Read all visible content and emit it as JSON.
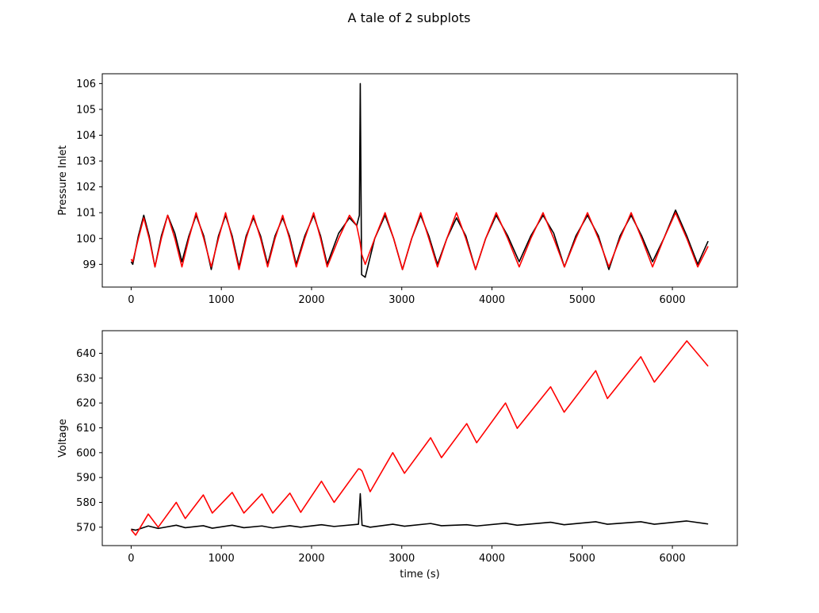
{
  "figure_title": "A tale of 2 subplots",
  "chart_data": [
    {
      "type": "line",
      "ylabel": "Pressure Inlet",
      "x": [
        0,
        18,
        80,
        140,
        200,
        264,
        335,
        405,
        485,
        563,
        640,
        720,
        805,
        888,
        968,
        1047,
        1120,
        1196,
        1275,
        1355,
        1435,
        1513,
        1595,
        1680,
        1755,
        1830,
        1925,
        2023,
        2100,
        2173,
        2300,
        2420,
        2500,
        2530,
        2540,
        2555,
        2595,
        2700,
        2815,
        2910,
        3008,
        3110,
        3210,
        3300,
        3396,
        3500,
        3607,
        3710,
        3818,
        3930,
        4047,
        4175,
        4302,
        4430,
        4566,
        4685,
        4803,
        4930,
        5059,
        5180,
        5296,
        5420,
        5543,
        5660,
        5780,
        5905,
        6035,
        6160,
        6281,
        6396
      ],
      "series": [
        {
          "color": "#000000",
          "values": [
            99.1,
            99.0,
            100.1,
            100.9,
            100.1,
            98.9,
            100.1,
            100.9,
            100.2,
            99.1,
            100.1,
            100.9,
            100.1,
            98.8,
            100.1,
            100.9,
            100.1,
            98.9,
            100.1,
            100.8,
            100.1,
            99.0,
            100.1,
            100.8,
            100.1,
            99.0,
            100.1,
            100.9,
            100.1,
            99.0,
            100.2,
            100.8,
            100.5,
            100.9,
            106.0,
            98.6,
            98.5,
            100.0,
            100.9,
            100.0,
            98.8,
            100.0,
            100.9,
            100.1,
            99.0,
            100.0,
            100.8,
            100.1,
            98.8,
            100.0,
            100.9,
            100.1,
            99.1,
            100.1,
            100.9,
            100.2,
            98.9,
            100.1,
            100.9,
            100.1,
            98.8,
            100.1,
            100.9,
            100.1,
            99.1,
            100.0,
            101.1,
            100.1,
            99.0,
            99.9
          ]
        },
        {
          "color": "#ff0000",
          "values": [
            99.2,
            99.1,
            100,
            100.8,
            100,
            98.9,
            100,
            100.9,
            100,
            98.9,
            100,
            101,
            100,
            98.9,
            100,
            101,
            100,
            98.8,
            100,
            100.9,
            100,
            98.9,
            100,
            100.9,
            100,
            98.9,
            100,
            101,
            100,
            98.9,
            100,
            100.9,
            100.5,
            100.0,
            99.8,
            99.4,
            99.0,
            100,
            101,
            100,
            98.8,
            100,
            101,
            100,
            98.9,
            100,
            101,
            100,
            98.8,
            100,
            101,
            100,
            98.9,
            100,
            101,
            100,
            98.9,
            100,
            101,
            100,
            98.9,
            100,
            101,
            100,
            98.9,
            100,
            101,
            100,
            98.9,
            99.7
          ]
        }
      ],
      "xlim": [
        -320,
        6720
      ],
      "xticks": [
        0,
        1000,
        2000,
        3000,
        4000,
        5000,
        6000
      ],
      "ylim": [
        98.12,
        106.38
      ],
      "yticks": [
        99,
        100,
        101,
        102,
        103,
        104,
        105,
        106
      ]
    },
    {
      "type": "line",
      "ylabel": "Voltage",
      "xlabel": "time (s)",
      "x": [
        0,
        50,
        190,
        300,
        500,
        600,
        800,
        900,
        1120,
        1250,
        1450,
        1570,
        1760,
        1880,
        2110,
        2250,
        2520,
        2540,
        2560,
        2650,
        2900,
        3030,
        3320,
        3440,
        3720,
        3830,
        4150,
        4280,
        4650,
        4800,
        5150,
        5280,
        5650,
        5800,
        6160,
        6396
      ],
      "series": [
        {
          "color": "#000000",
          "values": [
            569.2,
            568.8,
            570.5,
            569.5,
            570.8,
            569.8,
            570.6,
            569.6,
            570.8,
            569.8,
            570.5,
            569.7,
            570.6,
            570,
            571,
            570.3,
            571.2,
            583.5,
            570.8,
            570,
            571.2,
            570.4,
            571.5,
            570.6,
            571,
            570.5,
            571.6,
            570.8,
            572,
            571,
            572.2,
            571.2,
            572.2,
            571.2,
            572.5,
            571.3
          ]
        },
        {
          "color": "#ff0000",
          "values": [
            569,
            566.8,
            575.3,
            570,
            580,
            573.5,
            583,
            575.7,
            584,
            575.7,
            583.4,
            575.7,
            583.7,
            576,
            588.5,
            580,
            593.5,
            593.3,
            592.6,
            584.3,
            600,
            591.7,
            606,
            598,
            611.7,
            604,
            620,
            609.8,
            626.5,
            616.3,
            633,
            621.8,
            638.6,
            628.4,
            645,
            634.8
          ]
        }
      ],
      "xlim": [
        -320,
        6720
      ],
      "xticks": [
        0,
        1000,
        2000,
        3000,
        4000,
        5000,
        6000
      ],
      "ylim": [
        562.6,
        649.1
      ],
      "yticks": [
        570,
        580,
        590,
        600,
        610,
        620,
        630,
        640
      ]
    }
  ]
}
